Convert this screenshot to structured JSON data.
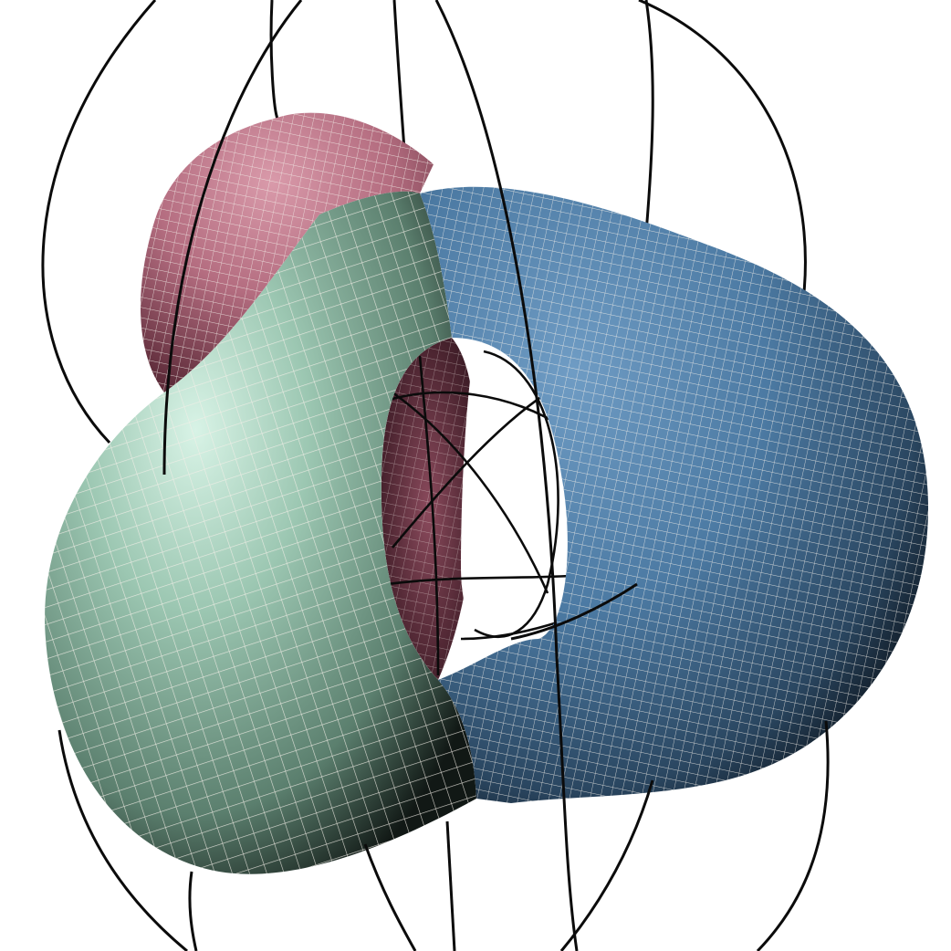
{
  "scene": {
    "background": "#ffffff",
    "surface_patches": [
      {
        "name": "pink",
        "color": "#c07a8c"
      },
      {
        "name": "green",
        "color": "#9fc8b3"
      },
      {
        "name": "blue",
        "color": "#4f7fa8"
      }
    ],
    "grid_line_color": "#f3efe8",
    "curve_color": "#0b0b0b"
  }
}
